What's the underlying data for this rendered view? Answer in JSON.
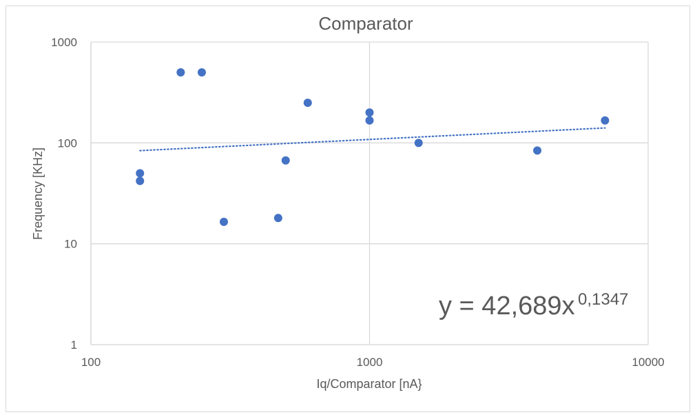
{
  "chart_data": {
    "type": "scatter",
    "title": "Comparator",
    "xlabel": "Iq/Comparator [nA}",
    "ylabel": "Frequency [KHz]",
    "x_scale": "log",
    "y_scale": "log",
    "xlim": [
      100,
      10000
    ],
    "ylim": [
      1,
      1000
    ],
    "x_ticks": [
      100,
      1000,
      10000
    ],
    "y_ticks": [
      1,
      10,
      100,
      1000
    ],
    "x_tick_labels": [
      "100",
      "1000",
      "10000"
    ],
    "y_tick_labels": [
      "1",
      "10",
      "100",
      "1000"
    ],
    "grid": true,
    "marker_color": "#4472c4",
    "trendline_color": "#4472c4",
    "points": [
      {
        "x": 150,
        "y": 50
      },
      {
        "x": 150,
        "y": 42
      },
      {
        "x": 210,
        "y": 500
      },
      {
        "x": 250,
        "y": 500
      },
      {
        "x": 300,
        "y": 16.5
      },
      {
        "x": 470,
        "y": 18
      },
      {
        "x": 500,
        "y": 67
      },
      {
        "x": 600,
        "y": 250
      },
      {
        "x": 1000,
        "y": 200
      },
      {
        "x": 1000,
        "y": 167
      },
      {
        "x": 1500,
        "y": 100
      },
      {
        "x": 4000,
        "y": 84
      },
      {
        "x": 7000,
        "y": 167
      }
    ],
    "trendline": {
      "type": "power",
      "coefficient": 42.689,
      "exponent": 0.1347,
      "x_range": [
        150,
        7000
      ],
      "equation_base": "y = 42,689x",
      "equation_exponent": "0,1347"
    }
  }
}
